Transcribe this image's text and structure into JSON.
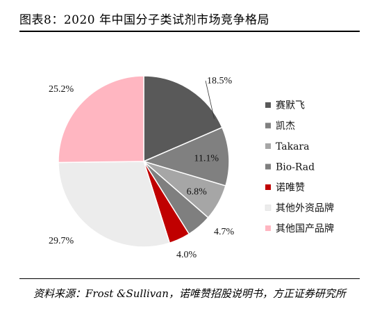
{
  "title": "图表8：2020 年中国分子类试剂市场竞争格局",
  "source_text": "资料来源：Frost &Sullivan，诺唯赞招股说明书，方正证券研究所",
  "chart_data": {
    "type": "pie",
    "title": "图表8：2020 年中国分子类试剂市场竞争格局",
    "legend_position": "right",
    "slices": [
      {
        "name": "赛默飞",
        "value": 18.5,
        "label": "18.5%",
        "color": "#595959"
      },
      {
        "name": "凯杰",
        "value": 11.1,
        "label": "11.1%",
        "color": "#808080"
      },
      {
        "name": "Takara",
        "value": 6.8,
        "label": "6.8%",
        "color": "#a6a6a6"
      },
      {
        "name": "Bio-Rad",
        "value": 4.7,
        "label": "4.7%",
        "color": "#7f7f7f"
      },
      {
        "name": "诺唯赞",
        "value": 4.0,
        "label": "4.0%",
        "color": "#c00000"
      },
      {
        "name": "其他外资品牌",
        "value": 29.7,
        "label": "29.7%",
        "color": "#ececec"
      },
      {
        "name": "其他国产品牌",
        "value": 25.2,
        "label": "25.2%",
        "color": "#ffb6c1"
      }
    ]
  }
}
